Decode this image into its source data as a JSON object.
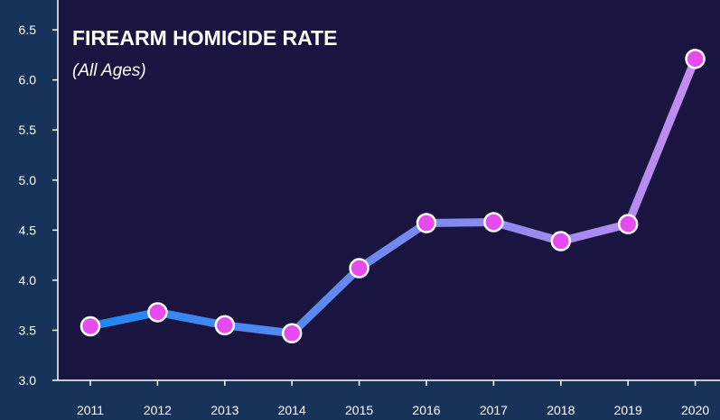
{
  "colors": {
    "page_background": "#18335a",
    "plot_background": "#1a1540",
    "line_start": "#1f86f2",
    "line_end": "#c58cf0",
    "marker_fill": "#e64bef",
    "marker_stroke": "#ffffff",
    "text": "#ffffff"
  },
  "chart_data": {
    "type": "line",
    "title": "FIREARM HOMICIDE RATE",
    "subtitle": "(All Ages)",
    "xlabel": "",
    "ylabel": "",
    "x": [
      "2011",
      "2012",
      "2013",
      "2014",
      "2015",
      "2016",
      "2017",
      "2018",
      "2019",
      "2020"
    ],
    "series": [
      {
        "values": [
          3.54,
          3.68,
          3.55,
          3.47,
          4.12,
          4.57,
          4.58,
          4.39,
          4.56,
          6.21
        ]
      }
    ],
    "ylim": [
      3.0,
      6.6
    ],
    "yticks": [
      "3.0",
      "3.5",
      "4.0",
      "4.5",
      "5.0",
      "5.5",
      "6.0",
      "6.5"
    ],
    "grid": false,
    "legend": "none"
  }
}
